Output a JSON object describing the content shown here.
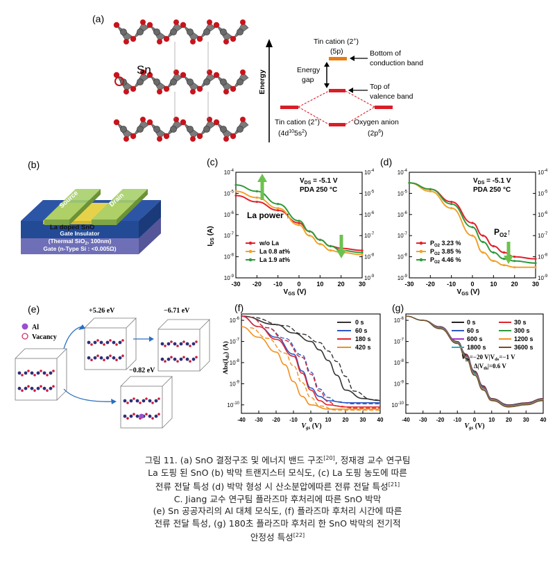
{
  "panel_a": {
    "label": "(a)",
    "sn_label": "Sn",
    "o_label": "O",
    "energy_axis": "Energy",
    "tin_top": "Tin cation (2",
    "tin_top_sup": "+",
    "tin_top_2": ")",
    "tin_top_sub": "(5p)",
    "bottom_cb_1": "Bottom of",
    "bottom_cb_2": "conduction band",
    "energy_gap_1": "Energy",
    "energy_gap_2": "gap",
    "top_vb_1": "Top of",
    "top_vb_2": "valence band",
    "tin_left_1": "Tin cation (2",
    "tin_left_sup": "+",
    "tin_left_2": ")",
    "tin_left_3": "(4d",
    "tin_left_3sup": "10",
    "tin_left_4": "5s",
    "tin_left_4sup": "2",
    "tin_left_5": ")",
    "oxygen_1": "Oxygen anion",
    "oxygen_2": "(2p",
    "oxygen_2sup": "6",
    "oxygen_3": ")"
  },
  "panel_b": {
    "label": "(b)",
    "source": "Source",
    "drain": "Drain",
    "la_doped": "La doped SnO",
    "gate_ins_1": "Gate Insulator",
    "gate_ins_2": "(Thermal SiO",
    "gate_ins_2sub": "2",
    "gate_ins_3": ", 100nm)",
    "gate": "Gate (n-Type Si : <0.005Ω)"
  },
  "panel_c": {
    "label": "(c)",
    "ylabel": "I",
    "ylabel_sub": "DS",
    "ylabel_unit": " (A)",
    "xlabel": "V",
    "xlabel_sub": "GS",
    "xlabel_unit": " (V)",
    "cond1": "V",
    "cond1_sub": "DS",
    "cond1_val": " = -5.1 V",
    "cond2": "PDA 250 °C",
    "annotation": "La power ↑",
    "legend": [
      "w/o La",
      "La 0.8 at%",
      "La 1.9 at%"
    ],
    "colors": [
      "#e2202b",
      "#f0a22a",
      "#2e9a3a"
    ]
  },
  "panel_d": {
    "label": "(d)",
    "cond1": "V",
    "cond1_sub": "DS",
    "cond1_val": " = -5.1 V",
    "cond2": "PDA 250 °C",
    "annotation": "P",
    "annotation_sub": "O2",
    "annotation_arrow": "↑",
    "xlabel": "V",
    "xlabel_sub": "GS",
    "xlabel_unit": " (V)",
    "legend": [
      "3.23 %",
      "3.85 %",
      "4.46 %"
    ],
    "legend_prefix": "P",
    "legend_sub": "O2",
    "colors": [
      "#e2202b",
      "#f0a22a",
      "#2e9a3a"
    ]
  },
  "panel_e": {
    "label": "(e)",
    "al": "Al",
    "vacancy": "Vacancy",
    "e1": "+5.26 eV",
    "e2": "−6.71 eV",
    "e3": "−0.82 eV"
  },
  "panel_f": {
    "label": "(f)",
    "ylabel": "Abs(I",
    "ylabel_sub": "ds",
    "ylabel_unit": ") (A)",
    "xlabel": "V",
    "xlabel_sub": "gs",
    "xlabel_unit": " (V)",
    "legend": [
      "0 s",
      "60 s",
      "180 s",
      "420 s"
    ],
    "colors": [
      "#333333",
      "#2d58c4",
      "#e0242c",
      "#f0901c"
    ]
  },
  "panel_g": {
    "label": "(g)",
    "xlabel": "V",
    "xlabel_sub": "gs",
    "xlabel_unit": " (V)",
    "legend": [
      "0 s",
      "30 s",
      "60 s",
      "300 s",
      "600 s",
      "1200 s",
      "1800 s",
      "3600 s"
    ],
    "colors": [
      "#222222",
      "#e0242c",
      "#2d58c4",
      "#2e9a3a",
      "#9b30d0",
      "#f0901c",
      "#19b5c9",
      "#7a4a1e"
    ],
    "note1": "V",
    "note1_sub": "gs",
    "note1_mid": "=−20 V|V",
    "note1_sub2": "ds",
    "note1_end": "=−1 V",
    "note2": "Δ|V",
    "note2_sub": "th",
    "note2_end": "|=0.6 V"
  },
  "chart_data": [
    {
      "type": "line",
      "panel": "(c)",
      "xlabel": "VGS (V)",
      "ylabel": "IDS (A)",
      "xlim": [
        -30,
        30
      ],
      "ylim_log10": [
        -9,
        -4
      ],
      "x_ticks": [
        -30,
        -20,
        -10,
        0,
        10,
        20,
        30
      ],
      "y_ticks": [
        "10^-9",
        "10^-8",
        "10^-7",
        "10^-6",
        "10^-5",
        "10^-4"
      ],
      "log_y": true,
      "series": [
        {
          "name": "w/o La",
          "x": [
            -30,
            -20,
            -10,
            0,
            5,
            10,
            15,
            20,
            30
          ],
          "log10_y": [
            -5.1,
            -5.4,
            -5.8,
            -6.4,
            -6.8,
            -7.2,
            -7.5,
            -7.6,
            -7.7
          ]
        },
        {
          "name": "La 0.8 at%",
          "x": [
            -30,
            -20,
            -10,
            0,
            5,
            10,
            15,
            20,
            30
          ],
          "log10_y": [
            -4.9,
            -5.2,
            -5.7,
            -6.5,
            -7.0,
            -7.4,
            -7.7,
            -7.8,
            -7.9
          ]
        },
        {
          "name": "La 1.9 at%",
          "x": [
            -30,
            -20,
            -10,
            0,
            5,
            10,
            15,
            20,
            30
          ],
          "log10_y": [
            -4.6,
            -4.9,
            -5.5,
            -6.3,
            -6.8,
            -7.2,
            -7.5,
            -7.7,
            -7.8
          ]
        }
      ]
    },
    {
      "type": "line",
      "panel": "(d)",
      "xlabel": "VGS (V)",
      "xlim": [
        -30,
        30
      ],
      "ylim_log10": [
        -9,
        -4
      ],
      "log_y": true,
      "series": [
        {
          "name": "PO2 3.23 %",
          "x": [
            -30,
            -20,
            -10,
            0,
            5,
            10,
            15,
            20,
            30
          ],
          "log10_y": [
            -4.5,
            -4.8,
            -5.4,
            -6.4,
            -7.0,
            -7.5,
            -7.8,
            -8.0,
            -8.1
          ]
        },
        {
          "name": "PO2 3.85 %",
          "x": [
            -30,
            -20,
            -10,
            0,
            5,
            10,
            15,
            20,
            30
          ],
          "log10_y": [
            -4.5,
            -4.9,
            -5.7,
            -7.0,
            -7.8,
            -8.2,
            -8.4,
            -8.5,
            -8.5
          ]
        },
        {
          "name": "PO2 4.46 %",
          "x": [
            -30,
            -20,
            -10,
            0,
            5,
            10,
            15,
            20,
            30
          ],
          "log10_y": [
            -4.5,
            -4.8,
            -5.5,
            -6.6,
            -7.3,
            -7.8,
            -8.1,
            -8.2,
            -8.3
          ]
        }
      ]
    },
    {
      "type": "line",
      "panel": "(f)",
      "xlabel": "Vgs (V)",
      "ylabel": "Abs(Ids) (A)",
      "xlim": [
        -40,
        40
      ],
      "ylim_log10": [
        -10.4,
        -5.7
      ],
      "x_ticks": [
        -40,
        -30,
        -20,
        -10,
        0,
        10,
        20,
        30,
        40
      ],
      "log_y": true,
      "series": [
        {
          "name": "0 s",
          "x": [
            -40,
            -20,
            -10,
            0,
            5,
            10,
            15,
            20,
            30,
            40
          ],
          "log10_y": [
            -5.8,
            -6.2,
            -6.6,
            -7.0,
            -7.4,
            -7.9,
            -8.6,
            -9.3,
            -9.7,
            -9.8
          ]
        },
        {
          "name": "60 s",
          "x": [
            -40,
            -30,
            -20,
            -10,
            -5,
            0,
            5,
            10,
            20,
            40
          ],
          "log10_y": [
            -5.8,
            -6.3,
            -6.8,
            -7.6,
            -8.4,
            -9.2,
            -9.6,
            -9.8,
            -9.9,
            -9.9
          ]
        },
        {
          "name": "180 s",
          "x": [
            -40,
            -30,
            -20,
            -10,
            -5,
            0,
            5,
            10,
            20,
            40
          ],
          "log10_y": [
            -5.8,
            -6.3,
            -6.9,
            -7.7,
            -8.5,
            -9.3,
            -9.8,
            -10.0,
            -10.1,
            -10.1
          ]
        },
        {
          "name": "420 s",
          "x": [
            -40,
            -30,
            -20,
            -15,
            -10,
            -5,
            0,
            10,
            20,
            40
          ],
          "log10_y": [
            -6.3,
            -6.8,
            -7.5,
            -8.1,
            -8.9,
            -9.6,
            -10.0,
            -10.2,
            -10.2,
            -10.2
          ]
        }
      ]
    },
    {
      "type": "line",
      "panel": "(g)",
      "xlabel": "Vgs (V)",
      "xlim": [
        -40,
        40
      ],
      "ylim_log10": [
        -10.4,
        -5.7
      ],
      "log_y": true,
      "series": [
        {
          "name": "0 s",
          "x": [
            -40,
            -30,
            -20,
            -10,
            -5,
            0,
            5,
            10,
            20,
            30,
            40
          ],
          "log10_y": [
            -5.8,
            -6.0,
            -6.3,
            -7.0,
            -7.6,
            -8.4,
            -9.1,
            -9.7,
            -10.0,
            -9.9,
            -9.7
          ]
        },
        {
          "name": "3600 s",
          "x": [
            -40,
            -30,
            -20,
            -10,
            -5,
            0,
            5,
            10,
            20,
            30,
            40
          ],
          "log10_y": [
            -5.8,
            -6.0,
            -6.4,
            -7.1,
            -7.8,
            -8.6,
            -9.3,
            -9.8,
            -10.1,
            -10.0,
            -9.8
          ]
        }
      ]
    }
  ],
  "caption": {
    "l1a": "그림 11. (a) SnO 결정구조 및 에너지 밴드 구조",
    "l1sup": "[20]",
    "l1b": ", 정재경 교수 연구팀",
    "l2": "La 도핑 된 SnO (b) 박막 트랜지스터 모식도, (c) La 도핑 농도에 따른",
    "l3a": "전류 전달 특성 (d) 박막 형성 시 산소분압에따른 전류 전달 특성",
    "l3sup": "[21]",
    "l4": "C. Jiang 교수 연구팀 플라즈마 후처리에 따른 SnO 박막",
    "l5": "(e) Sn 공공자리의 Al 대체 모식도, (f) 플라즈마 후처리 시간에 따른",
    "l6": "전류 전달 특성, (g) 180초 플라즈마 후처리 한 SnO 박막의 전기적",
    "l7a": "안정성 특성",
    "l7sup": "[22]"
  }
}
